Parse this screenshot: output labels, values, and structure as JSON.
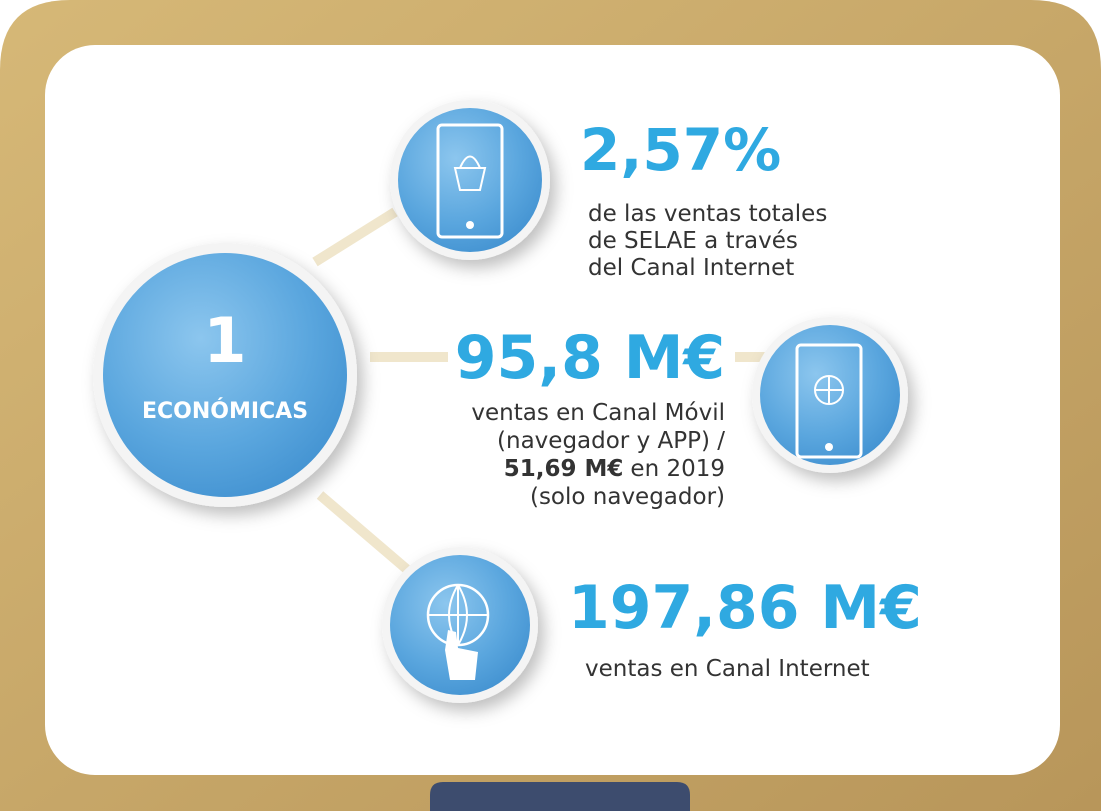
{
  "center": {
    "number": "1",
    "label": "ECONÓMICAS"
  },
  "items": [
    {
      "value": "2,57%",
      "lines": [
        "de las ventas totales",
        "de SELAE a través",
        "del Canal Internet"
      ]
    },
    {
      "value": "95,8 M€",
      "lines": [
        "ventas en Canal Móvil",
        "(navegador y APP) /"
      ],
      "highlight": "51,69 M€",
      "highlight_rest": "en 2019",
      "last_line": "(solo navegador)"
    },
    {
      "value": "197,86 M€",
      "lines": [
        "ventas en Canal Internet"
      ]
    }
  ]
}
